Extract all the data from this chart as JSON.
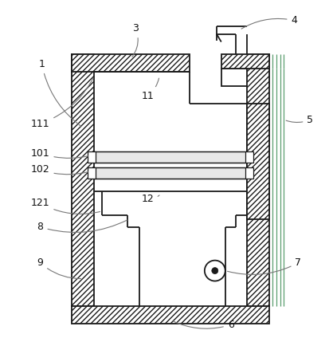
{
  "bg_color": "#ffffff",
  "line_color": "#1a1a1a",
  "hatch_color": "#333333",
  "green_color": "#5a9e6f",
  "purple_color": "#9370a8",
  "gray_color": "#888888",
  "fig_width": 4.14,
  "fig_height": 4.24,
  "dpi": 100
}
